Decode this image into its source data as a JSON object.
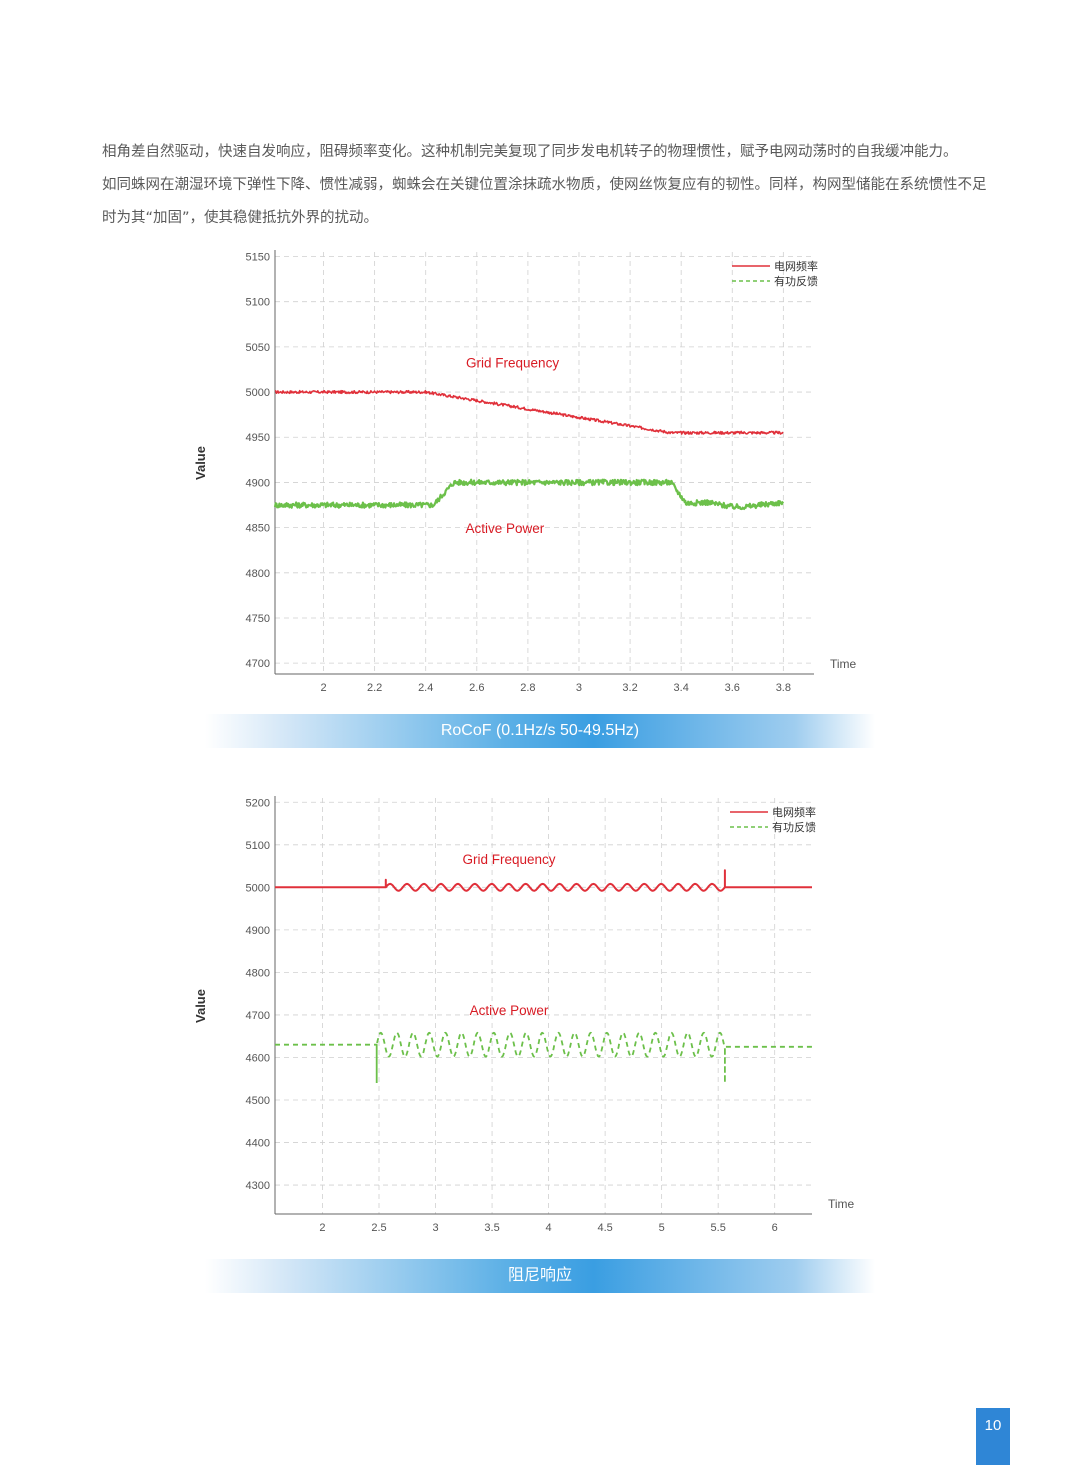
{
  "text": {
    "line1": "相角差自然驱动，快速自发响应，阻碍频率变化。这种机制完美复现了同步发电机转子的物理惯性，赋予电网动荡时的自我缓冲能力。",
    "line2": "如同蛛网在潮湿环境下弹性下降、惯性减弱，蜘蛛会在关键位置涂抹疏水物质，使网丝恢复应有的韧性。同样，构网型储能在系统惯性不足",
    "line3": "时为其“加固”，使其稳健抵抗外界的扰动。"
  },
  "page_number": "10",
  "colors": {
    "red": "#e0303a",
    "green": "#6cc04a",
    "grid": "#d0d0d0",
    "axis": "#666666",
    "annot": "#d81b24"
  },
  "chart_data": [
    {
      "type": "line",
      "caption": "RoCoF (0.1Hz/s 50-49.5Hz)",
      "xlabel": "Time",
      "ylabel": "Value",
      "xlim": [
        1.81,
        3.92
      ],
      "ylim": [
        4688,
        5155
      ],
      "xticks": [
        2,
        2.2,
        2.4,
        2.6,
        2.8,
        3,
        3.2,
        3.4,
        3.6,
        3.8
      ],
      "xtick_labels": [
        "2",
        "2.2",
        "2.4",
        "2.6",
        "2.8",
        "3",
        "3.2",
        "3.4",
        "3.6",
        "3.8"
      ],
      "yticks": [
        4700,
        4750,
        4800,
        4850,
        4900,
        4950,
        5000,
        5050,
        5100,
        5150
      ],
      "grid": true,
      "legend_position": "top-right",
      "annotations": [
        {
          "text": "Grid Frequency",
          "x": 2.74,
          "y": 5027
        },
        {
          "text": "Active Power",
          "x": 2.71,
          "y": 4844
        }
      ],
      "series": [
        {
          "name": "电网频率",
          "color": "#e0303a",
          "style": "solid",
          "noise": 1.5,
          "x": [
            1.81,
            2.4,
            3.36,
            3.8
          ],
          "y": [
            5000,
            5000,
            4955,
            4955
          ]
        },
        {
          "name": "有功反馈",
          "color": "#6cc04a",
          "style": "band",
          "noise": 3,
          "x": [
            1.81,
            2.43,
            2.51,
            3.36,
            3.42,
            3.5,
            3.6,
            3.65,
            3.8
          ],
          "y": [
            4875,
            4875,
            4900,
            4900,
            4877,
            4878,
            4873,
            4873,
            4878
          ]
        }
      ]
    },
    {
      "type": "line",
      "caption": "阻尼响应",
      "xlabel": "Time",
      "ylabel": "Value",
      "xlim": [
        1.58,
        6.33
      ],
      "ylim": [
        4232,
        5210
      ],
      "xticks": [
        2,
        2.5,
        3,
        3.5,
        4,
        4.5,
        5,
        5.5,
        6
      ],
      "xtick_labels": [
        "2",
        "2.5",
        "3",
        "3.5",
        "4",
        "4.5",
        "5",
        "5.5",
        "6"
      ],
      "yticks": [
        4300,
        4400,
        4500,
        4600,
        4700,
        4800,
        4900,
        5000,
        5100,
        5200
      ],
      "grid": true,
      "legend_position": "top-right",
      "annotations": [
        {
          "text": "Grid Frequency",
          "x": 3.65,
          "y": 5055
        },
        {
          "text": "Active Power",
          "x": 3.65,
          "y": 4700
        }
      ],
      "series": [
        {
          "name": "电网频率",
          "color": "#e0303a",
          "style": "solid",
          "baseline": 5000,
          "osc_start": 2.56,
          "osc_end": 5.56,
          "osc_amp": 8,
          "osc_freq": 6.67,
          "spikes": [
            {
              "x": 2.56,
              "y": 5018
            },
            {
              "x": 5.56,
              "y": 5040
            }
          ],
          "xend": 6.33
        },
        {
          "name": "有功反馈",
          "color": "#6cc04a",
          "style": "dashed",
          "baseline": 4630,
          "baseline_end": 4625,
          "osc_start": 2.48,
          "osc_end": 5.56,
          "osc_amp": 28,
          "osc_freq": 7,
          "spikes": [
            {
              "x": 2.48,
              "y": 4540
            },
            {
              "x": 5.56,
              "y": 4540
            }
          ],
          "xend": 6.33
        }
      ]
    }
  ]
}
